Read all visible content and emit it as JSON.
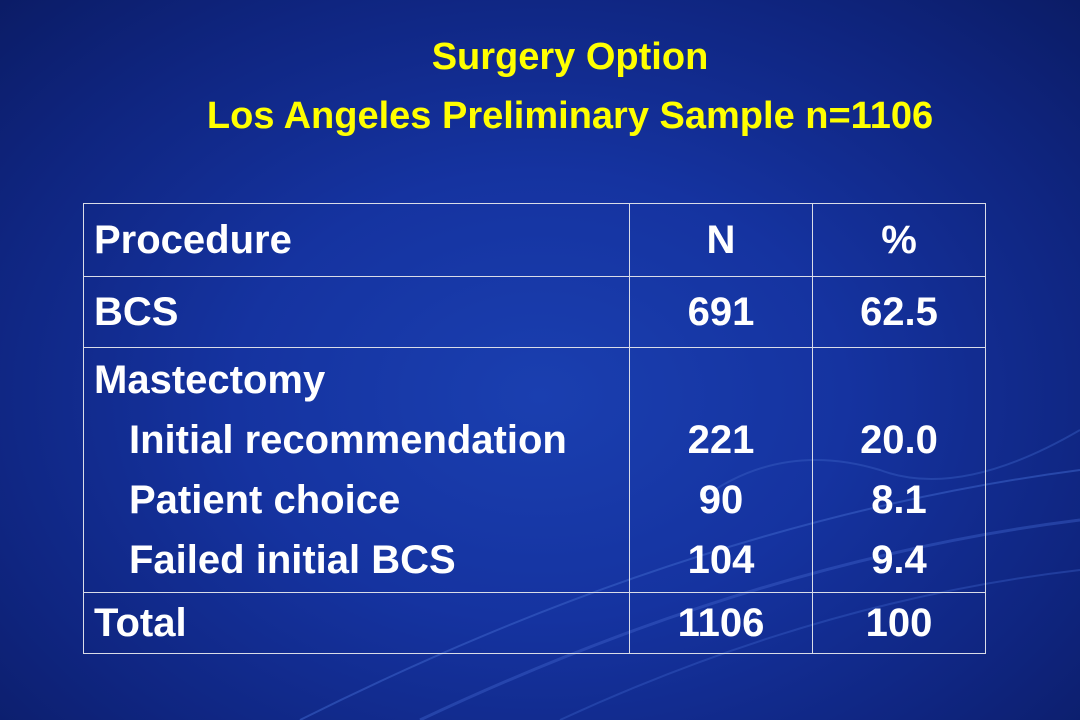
{
  "slide": {
    "title": "Surgery Option",
    "subtitle": "Los Angeles Preliminary Sample n=1106"
  },
  "table": {
    "headers": [
      "Procedure",
      "N",
      "%"
    ],
    "bcs": {
      "label": "BCS",
      "n": "691",
      "pct": "62.5"
    },
    "mastectomy": {
      "label": "Mastectomy",
      "items": [
        {
          "label": "Initial recommendation",
          "n": "221",
          "pct": "20.0"
        },
        {
          "label": "Patient choice",
          "n": "90",
          "pct": "8.1"
        },
        {
          "label": "Failed initial BCS",
          "n": "104",
          "pct": "9.4"
        }
      ]
    },
    "total": {
      "label": "Total",
      "n": "1106",
      "pct": "100"
    }
  },
  "colors": {
    "background": "#1533a0",
    "title": "#ffff00",
    "text": "#ffffff"
  }
}
